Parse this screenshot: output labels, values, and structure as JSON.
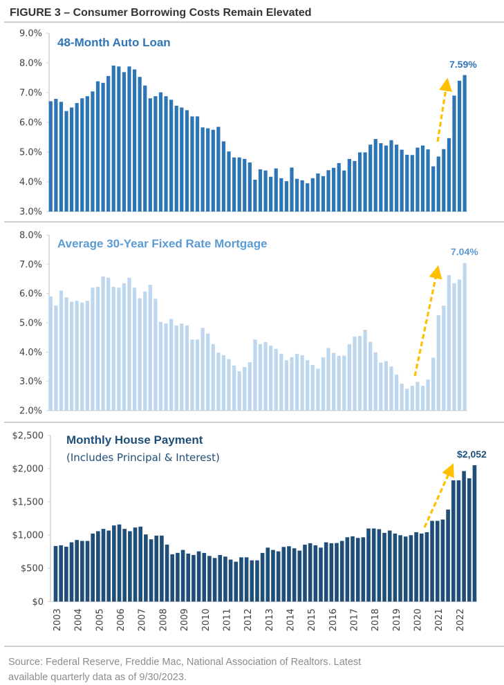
{
  "figure": {
    "title": "FIGURE 3 – Consumer Borrowing Costs Remain Elevated",
    "source_line1": "Source: Federal Reserve, Freddie Mac, National Association of Realtors. Latest",
    "source_line2": "available quarterly data as of 9/30/2023."
  },
  "colors": {
    "auto_bar": "#2E75B6",
    "auto_title": "#2E75B6",
    "mortgage_bar": "#BDD7EE",
    "mortgage_title": "#5B9BD5",
    "payment_bar": "#1F4E79",
    "payment_title": "#1F4E79",
    "arrow": "#FFC000"
  },
  "chart_data": [
    {
      "type": "bar",
      "title": "48-Month Auto Loan",
      "callout": "7.59%",
      "frequency": "quarterly",
      "x_start": "2003 Q1",
      "x_end": "2022 Q4",
      "ylim": [
        3.0,
        9.0
      ],
      "yticks": [
        3.0,
        4.0,
        5.0,
        6.0,
        7.0,
        8.0,
        9.0
      ],
      "ytick_labels": [
        "3.0%",
        "4.0%",
        "5.0%",
        "6.0%",
        "7.0%",
        "8.0%",
        "9.0%"
      ],
      "grid": false,
      "values": [
        6.71,
        6.79,
        6.69,
        6.38,
        6.5,
        6.65,
        6.81,
        6.88,
        7.04,
        7.38,
        7.33,
        7.56,
        7.91,
        7.88,
        7.69,
        7.88,
        7.78,
        7.53,
        7.24,
        6.81,
        6.88,
        7.01,
        6.88,
        6.76,
        6.56,
        6.5,
        6.41,
        6.2,
        6.2,
        5.83,
        5.8,
        5.75,
        5.85,
        5.36,
        5.02,
        4.82,
        4.82,
        4.77,
        4.65,
        4.07,
        4.42,
        4.38,
        4.17,
        4.45,
        4.12,
        4.02,
        4.48,
        4.1,
        4.05,
        3.95,
        4.12,
        4.28,
        4.19,
        4.39,
        4.47,
        4.63,
        4.38,
        4.77,
        4.7,
        4.99,
        4.99,
        5.25,
        5.44,
        5.3,
        5.22,
        5.4,
        5.25,
        5.08,
        4.91,
        4.9,
        5.15,
        5.22,
        5.09,
        4.52,
        4.85,
        5.1,
        5.47,
        6.9,
        7.4,
        7.59
      ],
      "annotation": "dashed upward arrow before the latest surge"
    },
    {
      "type": "bar",
      "title": "Average 30-Year Fixed Rate Mortgage",
      "callout": "7.04%",
      "frequency": "quarterly",
      "x_start": "2003 Q1",
      "x_end": "2022 Q4",
      "ylim": [
        2.0,
        8.0
      ],
      "yticks": [
        2.0,
        3.0,
        4.0,
        5.0,
        6.0,
        7.0,
        8.0
      ],
      "ytick_labels": [
        "2.0%",
        "3.0%",
        "4.0%",
        "5.0%",
        "6.0%",
        "7.0%",
        "8.0%"
      ],
      "grid": false,
      "values": [
        5.9,
        5.59,
        6.1,
        5.87,
        5.72,
        5.75,
        5.69,
        5.75,
        6.2,
        6.23,
        6.58,
        6.54,
        6.23,
        6.2,
        6.35,
        6.54,
        6.2,
        5.84,
        6.07,
        6.3,
        5.82,
        5.03,
        4.98,
        5.13,
        4.91,
        4.97,
        4.91,
        4.43,
        4.43,
        4.83,
        4.63,
        4.27,
        3.98,
        3.89,
        3.76,
        3.54,
        3.34,
        3.49,
        3.65,
        4.43,
        4.27,
        4.34,
        4.22,
        4.11,
        3.94,
        3.72,
        3.82,
        3.94,
        3.89,
        3.72,
        3.56,
        3.43,
        3.82,
        4.14,
        3.97,
        3.87,
        3.88,
        4.27,
        4.53,
        4.55,
        4.76,
        4.35,
        3.99,
        3.64,
        3.69,
        3.51,
        3.23,
        2.92,
        2.75,
        2.85,
        2.98,
        2.85,
        3.06,
        3.81,
        5.26,
        5.59,
        6.63,
        6.35,
        6.48,
        7.04
      ],
      "annotation": "dashed upward arrow before the latest surge"
    },
    {
      "type": "bar",
      "title": "Monthly House Payment",
      "subtitle": "(Includes Principal & Interest)",
      "callout": "$2,052",
      "frequency": "quarterly",
      "x_start": "2003 Q1",
      "x_end": "2022 Q4",
      "ylim": [
        0,
        2500
      ],
      "yticks": [
        0,
        500,
        1000,
        1500,
        2000,
        2500
      ],
      "ytick_labels": [
        "$0",
        "$500",
        "$1,000",
        "$1,500",
        "$2,000",
        "$2,500"
      ],
      "grid": false,
      "categories": [
        "2003",
        "2004",
        "2005",
        "2006",
        "2007",
        "2008",
        "2009",
        "2010",
        "2011",
        "2012",
        "2013",
        "2014",
        "2015",
        "2016",
        "2017",
        "2018",
        "2019",
        "2020",
        "2021",
        "2022"
      ],
      "values": [
        837,
        847,
        826,
        892,
        927,
        913,
        913,
        1024,
        1059,
        1094,
        1069,
        1146,
        1160,
        1094,
        1059,
        1115,
        1128,
        1010,
        937,
        993,
        993,
        858,
        712,
        733,
        777,
        722,
        701,
        756,
        732,
        687,
        656,
        701,
        677,
        632,
        600,
        666,
        666,
        621,
        621,
        732,
        812,
        777,
        756,
        822,
        833,
        802,
        767,
        857,
        878,
        847,
        812,
        892,
        878,
        881,
        913,
        968,
        982,
        958,
        968,
        1100,
        1100,
        1090,
        1034,
        1069,
        1024,
        999,
        979,
        999,
        1044,
        1024,
        1044,
        1215,
        1215,
        1235,
        1385,
        1825,
        1825,
        1964,
        1856,
        2052
      ],
      "xlabel": "",
      "annotation": "dashed upward arrow before the latest surge"
    }
  ]
}
